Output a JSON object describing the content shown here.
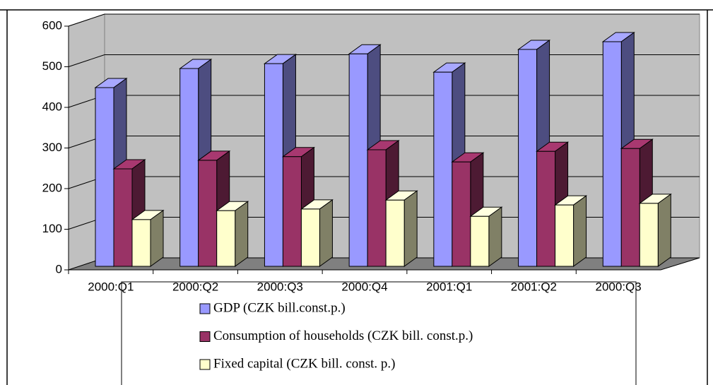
{
  "chart_data": {
    "type": "bar",
    "categories": [
      "2000:Q1",
      "2000:Q2",
      "2000:Q3",
      "2000:Q4",
      "2001:Q1",
      "2001:Q2",
      "2000:Q3"
    ],
    "series": [
      {
        "name": "GDP (CZK bill.const.p.)",
        "color": "#9999ff",
        "values": [
          440,
          487,
          499,
          523,
          478,
          534,
          553
        ]
      },
      {
        "name": "Consumption of households (CZK bill. const.p.)",
        "color": "#993366",
        "values": [
          240,
          261,
          270,
          287,
          257,
          283,
          290
        ]
      },
      {
        "name": "Fixed capital (CZK bill. const. p.)",
        "color": "#ffffcc",
        "values": [
          115,
          137,
          141,
          163,
          123,
          151,
          155
        ]
      }
    ],
    "ylim": [
      0,
      600
    ],
    "yticks": [
      0,
      100,
      200,
      300,
      400,
      500,
      600
    ],
    "grid": true,
    "legend": "bottom"
  }
}
